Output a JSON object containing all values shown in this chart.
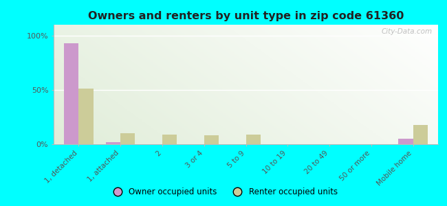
{
  "title": "Owners and renters by unit type in zip code 61360",
  "categories": [
    "1, detached",
    "1, attached",
    "2",
    "3 or 4",
    "5 to 9",
    "10 to 19",
    "20 to 49",
    "50 or more",
    "Mobile home"
  ],
  "owner_values": [
    93,
    2,
    0,
    0,
    0,
    0,
    0,
    0,
    5
  ],
  "renter_values": [
    51,
    10,
    9,
    8,
    9,
    0,
    0,
    0,
    18
  ],
  "owner_color": "#cc99cc",
  "renter_color": "#cccc99",
  "background_color": "#00ffff",
  "ylabel_ticks": [
    "0%",
    "50%",
    "100%"
  ],
  "ytick_vals": [
    0,
    50,
    100
  ],
  "ylim": [
    0,
    110
  ],
  "bar_width": 0.35,
  "watermark": "City-Data.com",
  "legend_owner": "Owner occupied units",
  "legend_renter": "Renter occupied units"
}
